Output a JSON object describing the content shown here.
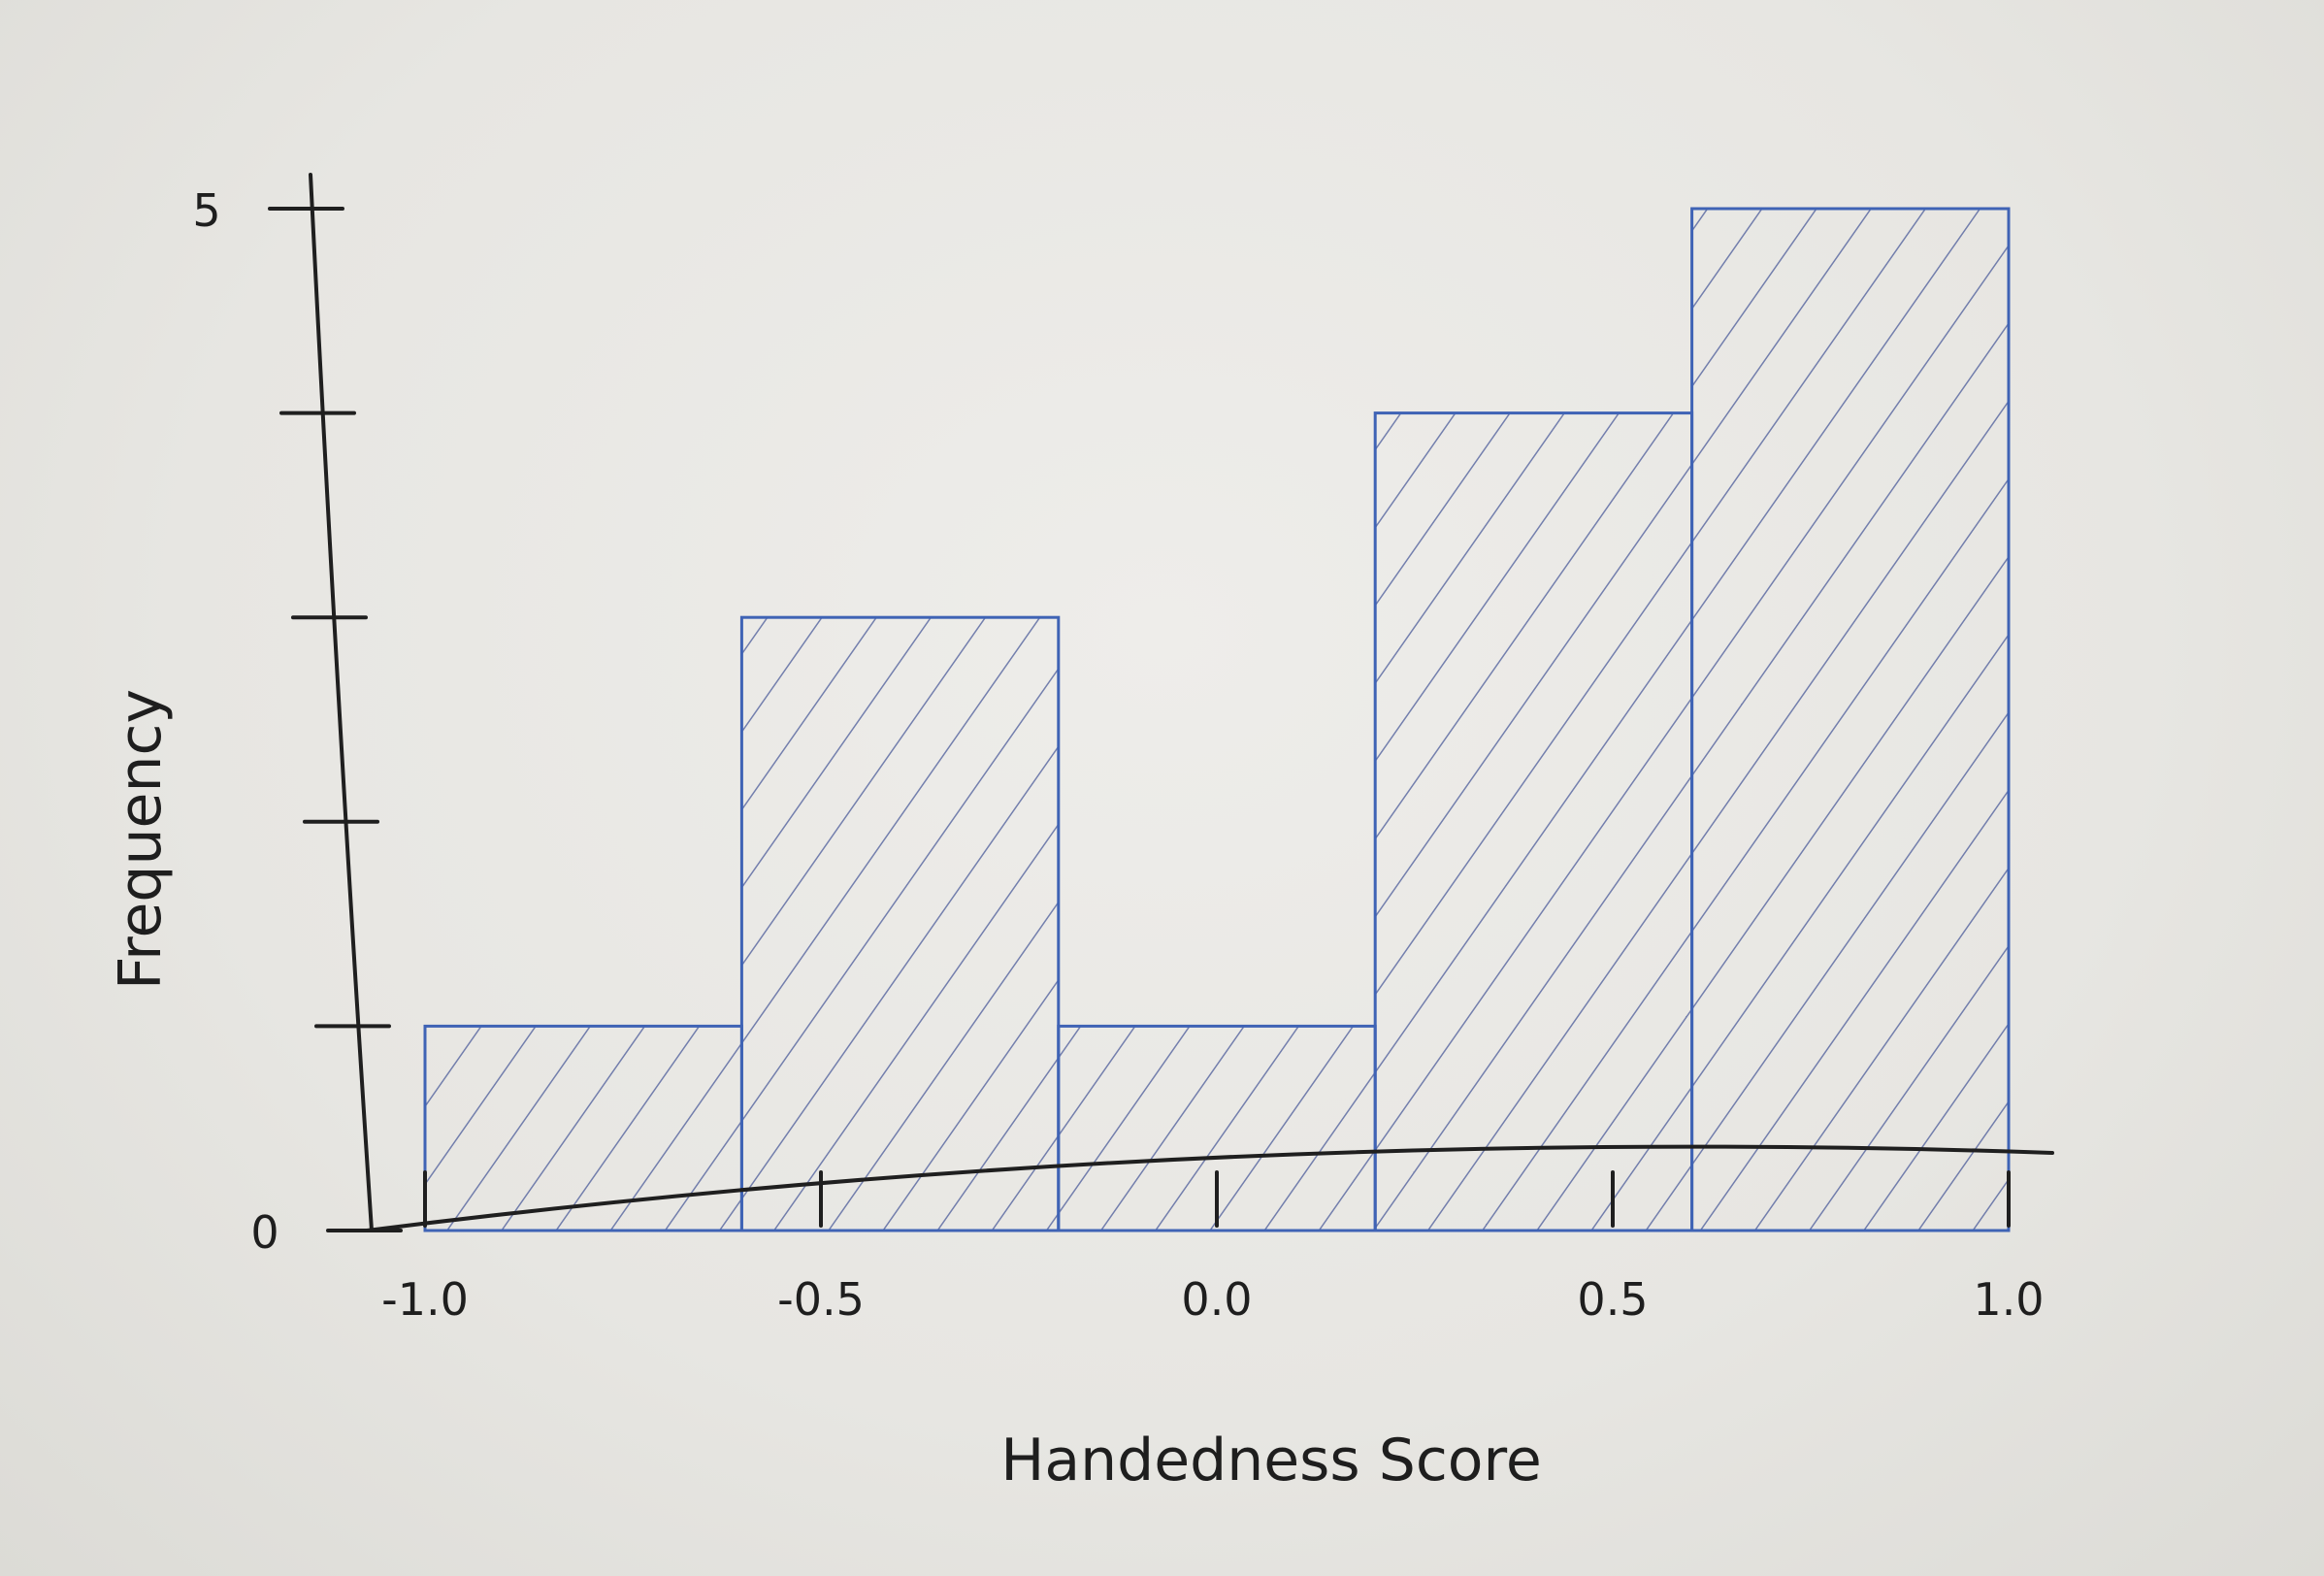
{
  "colors": {
    "paper": "#e9e8e4",
    "pencil": "#1f1f1f",
    "bar_outline": "#3f63b5",
    "hatch": "#4a5a9a"
  },
  "chart_data": {
    "type": "bar",
    "title": "",
    "xlabel": "Handedness Score",
    "ylabel": "Frequency",
    "bin_edges": [
      -1.0,
      -0.6,
      -0.2,
      0.2,
      0.6,
      1.0
    ],
    "values": [
      1,
      3,
      1,
      4,
      5
    ],
    "xlim": [
      -1.0,
      1.0
    ],
    "ylim": [
      0,
      5
    ],
    "x_ticks": [
      -1.0,
      -0.5,
      0.0,
      0.5,
      1.0
    ],
    "x_tick_labels": [
      "-1.0",
      "-0.5",
      "0.0",
      "0.5",
      "1.0"
    ],
    "y_ticks": [
      0,
      1,
      2,
      3,
      4,
      5
    ],
    "y_tick_labels": [
      "0",
      "",
      "",
      "",
      "",
      "5"
    ],
    "grid": false,
    "legend": "none"
  }
}
